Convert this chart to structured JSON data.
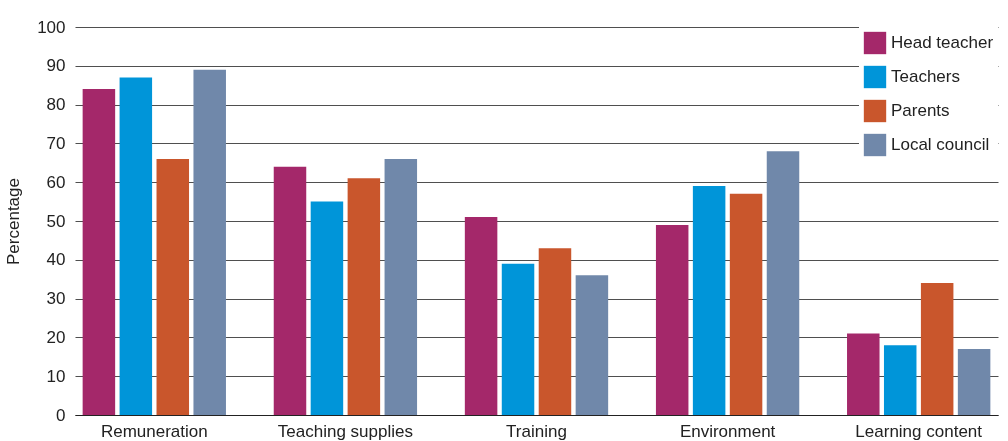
{
  "chart_data": {
    "type": "bar",
    "ylabel": "Percentage",
    "categories": [
      "Remuneration",
      "Teaching supplies",
      "Training",
      "Environment",
      "Learning content"
    ],
    "series": [
      {
        "name": "Head teacher",
        "color": "#a4286a",
        "values": [
          84,
          64,
          51,
          49,
          21
        ]
      },
      {
        "name": "Teachers",
        "color": "#0095d9",
        "values": [
          87,
          55,
          39,
          59,
          18
        ]
      },
      {
        "name": "Parents",
        "color": "#c9562c",
        "values": [
          66,
          61,
          43,
          57,
          34
        ]
      },
      {
        "name": "Local council",
        "color": "#7088aa",
        "values": [
          89,
          66,
          36,
          68,
          17
        ]
      }
    ],
    "ylim": [
      0,
      100
    ],
    "yticks": [
      0,
      10,
      20,
      30,
      40,
      50,
      60,
      70,
      80,
      90,
      100
    ],
    "grid": "y",
    "legend": "top right"
  }
}
